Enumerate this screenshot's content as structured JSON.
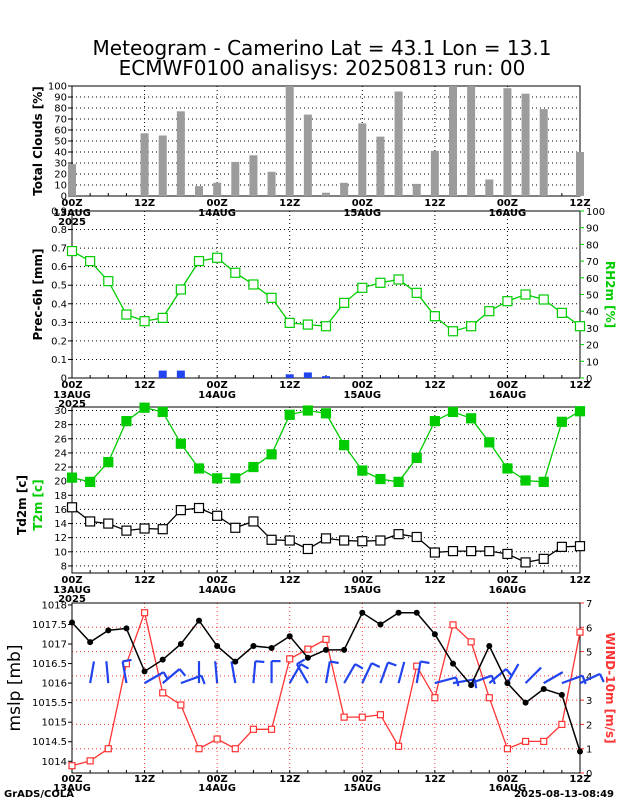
{
  "header": {
    "title_line1": "Meteogram - Camerino Lat = 43.1 Lon = 13.1",
    "title_line2": "ECMWF0100 analisys: 20250813 run: 00"
  },
  "footer": {
    "left": "GrADS/COLA",
    "right": "2025-08-13-08:49"
  },
  "x_axis": {
    "hour_labels": [
      "00Z",
      "12Z",
      "00Z",
      "12Z",
      "00Z",
      "12Z",
      "00Z",
      "12Z"
    ],
    "date_labels": [
      "13AUG",
      "14AUG",
      "15AUG",
      "16AUG"
    ],
    "year_label": "2025"
  },
  "colors": {
    "green": "#00cc00",
    "red": "#ff3333",
    "blue": "#2244ee",
    "gray": "#9c9c9c",
    "black": "#000000"
  },
  "chart_data": [
    {
      "id": "clouds",
      "type": "bar",
      "ylabel": "Total Clouds [%]",
      "ylim": [
        0,
        100
      ],
      "yticks": [
        0,
        10,
        20,
        30,
        40,
        50,
        60,
        70,
        80,
        90,
        100
      ],
      "grid": true,
      "x": [
        0,
        3,
        6,
        9,
        12,
        15,
        18,
        21,
        24,
        27,
        30,
        33,
        36,
        39,
        42,
        45,
        48,
        51,
        54,
        57,
        60,
        63,
        66,
        69,
        72,
        75,
        78,
        81,
        84
      ],
      "values": [
        29,
        0,
        0,
        0,
        57,
        55,
        77,
        9,
        12,
        31,
        37,
        22,
        100,
        74,
        3,
        12,
        66,
        54,
        95,
        11,
        41,
        100,
        100,
        15,
        98,
        93,
        79,
        0,
        40
      ]
    },
    {
      "id": "prec_rh",
      "type": "bar+line",
      "ylabel_left": "Prec-6h [mm]",
      "ylabel_right": "RH2m [%]",
      "ylim_left": [
        0,
        0.9
      ],
      "yticks_left": [
        "0",
        "0.1",
        "0.2",
        "0.3",
        "0.4",
        "0.5",
        "0.6",
        "0.7",
        "0.8",
        "0.9"
      ],
      "ylim_right": [
        0,
        100
      ],
      "yticks_right": [
        0,
        10,
        20,
        30,
        40,
        50,
        60,
        70,
        80,
        90,
        100
      ],
      "grid": true,
      "prec_x": [
        15,
        18,
        36,
        39,
        42
      ],
      "prec_values": [
        0.04,
        0.04,
        0.02,
        0.03,
        0.01
      ],
      "rh_x": [
        0,
        3,
        6,
        9,
        12,
        15,
        18,
        21,
        24,
        27,
        30,
        33,
        36,
        39,
        42,
        45,
        48,
        51,
        54,
        57,
        60,
        63,
        66,
        69,
        72,
        75,
        78,
        81,
        84
      ],
      "rh_values": [
        76,
        70,
        58,
        38,
        34,
        36,
        53,
        70,
        72,
        63,
        56,
        48,
        33,
        32,
        31,
        45,
        54,
        57,
        59,
        51,
        37,
        28,
        31,
        40,
        46,
        50,
        47,
        39,
        31
      ]
    },
    {
      "id": "temp",
      "type": "line",
      "ylabel_left": "Td2m [c]",
      "ylabel_left2": "T2m [c]",
      "ylim": [
        7,
        30.5
      ],
      "yticks": [
        8,
        10,
        12,
        14,
        16,
        18,
        20,
        22,
        24,
        26,
        28,
        30
      ],
      "grid": true,
      "x": [
        0,
        3,
        6,
        9,
        12,
        15,
        18,
        21,
        24,
        27,
        30,
        33,
        36,
        39,
        42,
        45,
        48,
        51,
        54,
        57,
        60,
        63,
        66,
        69,
        72,
        75,
        78,
        81,
        84
      ],
      "series": [
        {
          "id": "t2m",
          "values": [
            20.5,
            19.9,
            22.7,
            28.5,
            30.4,
            29.8,
            25.3,
            21.8,
            20.4,
            20.4,
            22.0,
            23.8,
            29.4,
            30.0,
            29.6,
            25.1,
            21.5,
            20.3,
            19.9,
            23.3,
            28.5,
            29.8,
            28.9,
            25.5,
            21.8,
            20.1,
            19.9,
            28.4,
            29.9
          ]
        },
        {
          "id": "td2m",
          "values": [
            16.3,
            14.3,
            14.0,
            13.0,
            13.3,
            13.2,
            15.9,
            16.2,
            15.1,
            13.4,
            14.3,
            11.7,
            11.6,
            10.4,
            11.9,
            11.6,
            11.5,
            11.6,
            12.5,
            12.1,
            9.9,
            10.1,
            10.1,
            10.1,
            9.7,
            8.5,
            9.0,
            10.7,
            10.8
          ]
        }
      ]
    },
    {
      "id": "mslp_wind",
      "type": "line+barbs",
      "ylabel_left": "mslp [mb]",
      "ylabel_right": "WIND-10m [m/s]",
      "ylim_left": [
        1013.7,
        1018.05
      ],
      "yticks_left": [
        "1014",
        "1014.5",
        "1015",
        "1015.5",
        "1016",
        "1016.5",
        "1017",
        "1017.5",
        "1018"
      ],
      "ylim_right": [
        0,
        7
      ],
      "yticks_right": [
        0,
        1,
        2,
        3,
        4,
        5,
        6,
        7
      ],
      "grid": true,
      "x": [
        0,
        3,
        6,
        9,
        12,
        15,
        18,
        21,
        24,
        27,
        30,
        33,
        36,
        39,
        42,
        45,
        48,
        51,
        54,
        57,
        60,
        63,
        66,
        69,
        72,
        75,
        78,
        81,
        84
      ],
      "series": [
        {
          "id": "mslp",
          "values": [
            1017.55,
            1017.05,
            1017.35,
            1017.4,
            1016.3,
            1016.6,
            1017.0,
            1017.6,
            1016.95,
            1016.55,
            1016.95,
            1016.9,
            1017.2,
            1016.65,
            1016.85,
            1016.85,
            1017.8,
            1017.5,
            1017.8,
            1017.8,
            1017.25,
            1016.5,
            1015.95,
            1016.95,
            1016.0,
            1015.5,
            1015.85,
            1015.7,
            1014.25
          ]
        },
        {
          "id": "wind",
          "values": [
            0.3,
            0.5,
            1.0,
            4.5,
            6.6,
            3.3,
            2.8,
            1.0,
            1.4,
            1.0,
            1.8,
            1.8,
            4.7,
            5.1,
            5.5,
            2.3,
            2.3,
            2.4,
            1.1,
            4.4,
            3.1,
            6.1,
            5.4,
            3.1,
            1.0,
            1.3,
            1.3,
            2.0,
            5.8
          ]
        }
      ]
    }
  ]
}
